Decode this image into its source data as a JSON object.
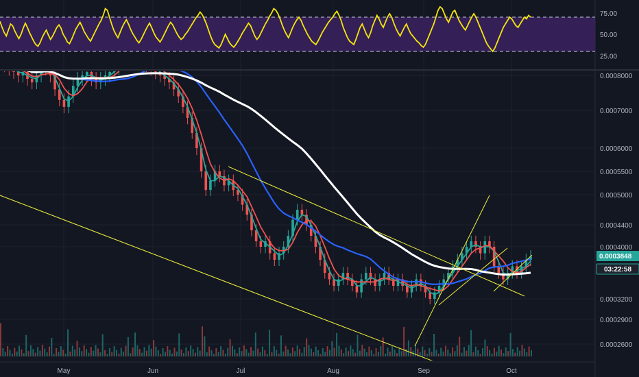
{
  "colors": {
    "background": "#131722",
    "grid": "#1e222d",
    "axis_text": "#b2b5be",
    "rsi_line": "#f5e50a",
    "rsi_band": "#3b2260",
    "rsi_level_line": "#c9ced8",
    "ema_short": "#26a69a",
    "ema_mid": "#ef5350",
    "sma_100": "#2962ff",
    "sma_200": "#ffffff",
    "candle_up": "#26a69a",
    "candle_down": "#ef5350",
    "trendline": "#e3e33a",
    "price_tag_bg": "#26a69a",
    "countdown_tag_bg": "#1e222d"
  },
  "chart_data": [
    {
      "type": "line",
      "name": "rsi",
      "y_axis_labels": [
        "75.00",
        "50.00",
        "25.00"
      ],
      "y_range": [
        10,
        90
      ],
      "band": [
        30,
        70
      ],
      "band_lines": [
        70,
        30
      ],
      "values": [
        65,
        58,
        52,
        48,
        55,
        62,
        60,
        54,
        49,
        45,
        50,
        57,
        63,
        58,
        52,
        47,
        42,
        38,
        36,
        40,
        46,
        51,
        55,
        49,
        44,
        48,
        53,
        58,
        61,
        57,
        50,
        46,
        41,
        39,
        44,
        50,
        56,
        60,
        64,
        59,
        53,
        49,
        45,
        42,
        47,
        52,
        57,
        62,
        66,
        72,
        80,
        78,
        70,
        62,
        55,
        50,
        46,
        52,
        58,
        63,
        67,
        62,
        56,
        51,
        47,
        43,
        40,
        44,
        49,
        54,
        59,
        63,
        58,
        52,
        47,
        44,
        41,
        45,
        50,
        55,
        60,
        64,
        61,
        56,
        51,
        47,
        44,
        46,
        50,
        53,
        57,
        61,
        65,
        69,
        72,
        76,
        73,
        68,
        62,
        55,
        48,
        42,
        38,
        36,
        34,
        38,
        44,
        50,
        45,
        40,
        37,
        35,
        38,
        42,
        46,
        51,
        55,
        59,
        63,
        60,
        54,
        48,
        44,
        47,
        52,
        57,
        62,
        66,
        71,
        75,
        80,
        78,
        74,
        68,
        61,
        55,
        50,
        46,
        52,
        58,
        63,
        67,
        70,
        66,
        60,
        55,
        50,
        46,
        42,
        40,
        38,
        42,
        47,
        52,
        56,
        60,
        64,
        67,
        70,
        74,
        77,
        72,
        66,
        58,
        52,
        46,
        42,
        40,
        38,
        44,
        51,
        58,
        62,
        56,
        50,
        46,
        52,
        60,
        66,
        72,
        68,
        62,
        58,
        64,
        70,
        74,
        70,
        63,
        57,
        52,
        48,
        53,
        58,
        62,
        56,
        51,
        48,
        45,
        42,
        40,
        37,
        35,
        38,
        44,
        50,
        56,
        62,
        70,
        78,
        82,
        80,
        74,
        68,
        64,
        70,
        76,
        78,
        72,
        66,
        62,
        58,
        55,
        60,
        65,
        70,
        74,
        70,
        64,
        58,
        52,
        46,
        40,
        36,
        33,
        30,
        34,
        40,
        46,
        52,
        58,
        62,
        66,
        70,
        68,
        64,
        60,
        58,
        62,
        66,
        70,
        68,
        72,
        70
      ]
    },
    {
      "type": "line",
      "name": "price",
      "y_axis_labels": [
        "0.0008000",
        "0.0007000",
        "0.0006000",
        "0.0005500",
        "0.0005000",
        "0.0004400",
        "0.0004000",
        "0.0003200",
        "0.0002900",
        "0.0002600"
      ],
      "x_axis_labels": [
        "May",
        "Jun",
        "Jul",
        "Aug",
        "Sep",
        "Oct"
      ],
      "close": [
        0.00084,
        0.00083,
        0.00082,
        0.00081,
        0.0008,
        0.00081,
        0.00079,
        0.00078,
        0.0008,
        0.00083,
        0.00082,
        0.0008,
        0.00076,
        0.00073,
        0.00071,
        0.00074,
        0.00077,
        0.00079,
        0.0008,
        0.00081,
        0.00079,
        0.00078,
        0.00079,
        0.0008,
        0.00081,
        0.00082,
        0.00084,
        0.00085,
        0.00086,
        0.00087,
        0.00086,
        0.00085,
        0.00083,
        0.00082,
        0.00081,
        0.0008,
        0.00079,
        0.00078,
        0.00076,
        0.00074,
        0.00071,
        0.00068,
        0.00064,
        0.0006,
        0.00055,
        0.00051,
        0.00053,
        0.00055,
        0.00054,
        0.00052,
        0.00053,
        0.00051,
        0.0005,
        0.00048,
        0.00046,
        0.00043,
        0.00041,
        0.0004,
        0.00041,
        0.00039,
        0.00038,
        0.00039,
        0.0004,
        0.00042,
        0.00045,
        0.00047,
        0.00046,
        0.00044,
        0.00042,
        0.0004,
        0.00038,
        0.00036,
        0.00035,
        0.00034,
        0.00035,
        0.00036,
        0.00035,
        0.00034,
        0.00033,
        0.00035,
        0.00036,
        0.00035,
        0.00034,
        0.00035,
        0.00036,
        0.00035,
        0.00034,
        0.00035,
        0.00034,
        0.00033,
        0.00034,
        0.00035,
        0.00034,
        0.00033,
        0.00032,
        0.00033,
        0.00034,
        0.00035,
        0.00036,
        0.00037,
        0.00038,
        0.00039,
        0.0004,
        0.00041,
        0.0004,
        0.00039,
        0.00041,
        0.0004,
        0.00037,
        0.00036,
        0.00035,
        0.00036,
        0.00037,
        0.00036,
        0.00037,
        0.00038,
        0.000385
      ],
      "highlighted_value": "0.0003848",
      "countdown": "03:22:58"
    }
  ],
  "x_axis": {
    "labels": [
      "May",
      "Jun",
      "Jul",
      "Aug",
      "Sep",
      "Oct"
    ]
  },
  "rsi_axis": {
    "labels": [
      "75.00",
      "50.00",
      "25.00"
    ]
  },
  "price_axis": {
    "labels": [
      "0.0008000",
      "0.0007000",
      "0.0006000",
      "0.0005500",
      "0.0005000",
      "0.0004400",
      "0.0004000",
      "0.0003200",
      "0.0002900",
      "0.0002600"
    ]
  },
  "price_tag": {
    "value": "0.0003848",
    "countdown": "03:22:58"
  }
}
